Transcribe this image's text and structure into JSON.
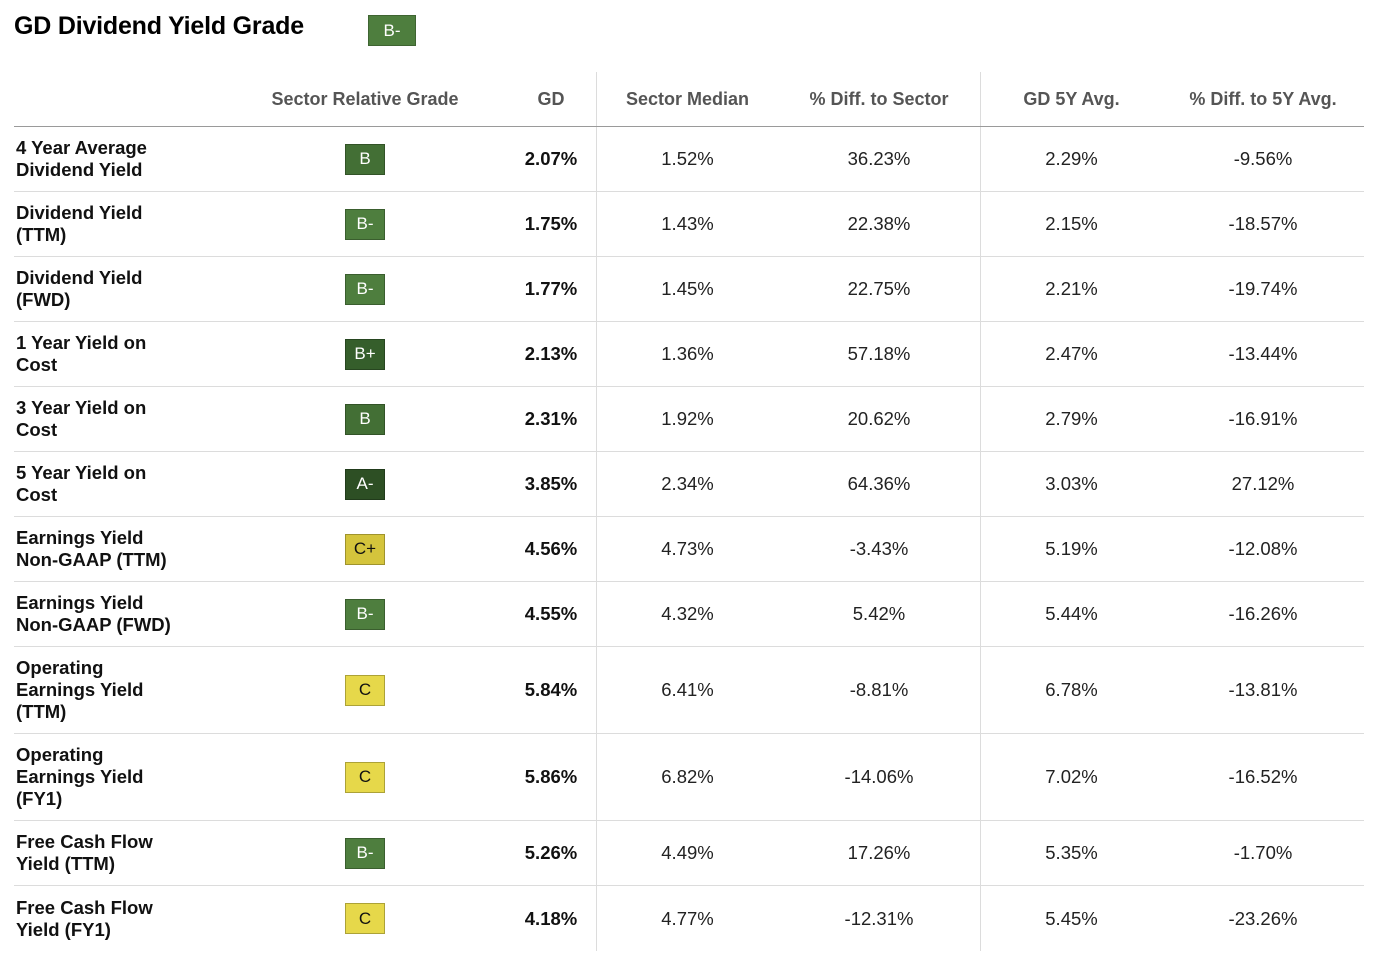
{
  "header": {
    "title": "GD Dividend Yield Grade",
    "overall_grade": "B-",
    "overall_grade_color": "#4e7e3e"
  },
  "table": {
    "columns": [
      "",
      "Sector Relative Grade",
      "GD",
      "Sector Median",
      "% Diff. to Sector",
      "GD 5Y Avg.",
      "% Diff. to 5Y Avg."
    ],
    "rows": [
      {
        "label": "4 Year Average\nDividend Yield",
        "grade": "B",
        "gd": "2.07%",
        "median": "1.52%",
        "diff": "36.23%",
        "avg5y": "2.29%",
        "diff5y": "-9.56%"
      },
      {
        "label": "Dividend Yield\n(TTM)",
        "grade": "B-",
        "gd": "1.75%",
        "median": "1.43%",
        "diff": "22.38%",
        "avg5y": "2.15%",
        "diff5y": "-18.57%"
      },
      {
        "label": "Dividend Yield\n(FWD)",
        "grade": "B-",
        "gd": "1.77%",
        "median": "1.45%",
        "diff": "22.75%",
        "avg5y": "2.21%",
        "diff5y": "-19.74%"
      },
      {
        "label": "1 Year Yield on\nCost",
        "grade": "B+",
        "gd": "2.13%",
        "median": "1.36%",
        "diff": "57.18%",
        "avg5y": "2.47%",
        "diff5y": "-13.44%"
      },
      {
        "label": "3 Year Yield on\nCost",
        "grade": "B",
        "gd": "2.31%",
        "median": "1.92%",
        "diff": "20.62%",
        "avg5y": "2.79%",
        "diff5y": "-16.91%"
      },
      {
        "label": "5 Year Yield on\nCost",
        "grade": "A-",
        "gd": "3.85%",
        "median": "2.34%",
        "diff": "64.36%",
        "avg5y": "3.03%",
        "diff5y": "27.12%"
      },
      {
        "label": "Earnings Yield\nNon-GAAP (TTM)",
        "grade": "C+",
        "gd": "4.56%",
        "median": "4.73%",
        "diff": "-3.43%",
        "avg5y": "5.19%",
        "diff5y": "-12.08%"
      },
      {
        "label": "Earnings Yield\nNon-GAAP (FWD)",
        "grade": "B-",
        "gd": "4.55%",
        "median": "4.32%",
        "diff": "5.42%",
        "avg5y": "5.44%",
        "diff5y": "-16.26%"
      },
      {
        "label": "Operating\nEarnings Yield\n(TTM)",
        "grade": "C",
        "gd": "5.84%",
        "median": "6.41%",
        "diff": "-8.81%",
        "avg5y": "6.78%",
        "diff5y": "-13.81%"
      },
      {
        "label": "Operating\nEarnings Yield\n(FY1)",
        "grade": "C",
        "gd": "5.86%",
        "median": "6.82%",
        "diff": "-14.06%",
        "avg5y": "7.02%",
        "diff5y": "-16.52%"
      },
      {
        "label": "Free Cash Flow\nYield (TTM)",
        "grade": "B-",
        "gd": "5.26%",
        "median": "4.49%",
        "diff": "17.26%",
        "avg5y": "5.35%",
        "diff5y": "-1.70%"
      },
      {
        "label": "Free Cash Flow\nYield (FY1)",
        "grade": "C",
        "gd": "4.18%",
        "median": "4.77%",
        "diff": "-12.31%",
        "avg5y": "5.45%",
        "diff5y": "-23.26%"
      }
    ]
  },
  "grade_colors": {
    "A-": {
      "bg": "#2d4f24",
      "fg": "#ffffff"
    },
    "B+": {
      "bg": "#355e2b",
      "fg": "#ffffff"
    },
    "B": {
      "bg": "#436f35",
      "fg": "#ffffff"
    },
    "B-": {
      "bg": "#4e7e3e",
      "fg": "#ffffff"
    },
    "C+": {
      "bg": "#d4c43c",
      "fg": "#111111"
    },
    "C": {
      "bg": "#e6d84a",
      "fg": "#111111"
    }
  }
}
